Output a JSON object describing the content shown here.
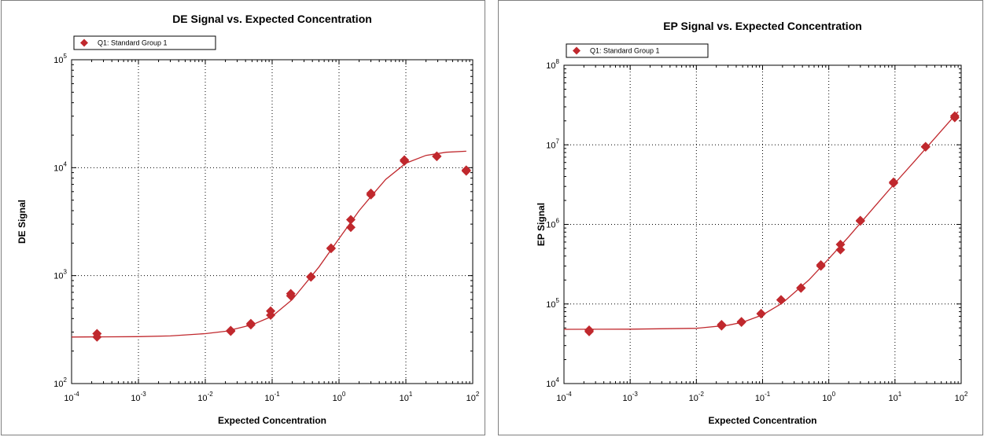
{
  "chart_data": [
    {
      "type": "scatter",
      "title": "DE Signal vs. Expected Concentration",
      "xlabel": "Expected Concentration",
      "ylabel": "DE Signal",
      "xscale": "log",
      "yscale": "log",
      "xlim": [
        0.0001,
        100
      ],
      "ylim": [
        100,
        100000
      ],
      "x_ticks": [
        "10-4",
        "10-3",
        "10-2",
        "10-1",
        "100",
        "101",
        "102"
      ],
      "y_ticks": [
        "102",
        "103",
        "104",
        "105"
      ],
      "grid": true,
      "legend_position": "top-left",
      "color": "#c0282d",
      "series": [
        {
          "name": "Q1: Standard Group 1",
          "marker": "diamond",
          "points": [
            [
              0.00024,
              290
            ],
            [
              0.00024,
              270
            ],
            [
              0.024,
              310
            ],
            [
              0.024,
              305
            ],
            [
              0.048,
              360
            ],
            [
              0.048,
              350
            ],
            [
              0.095,
              470
            ],
            [
              0.095,
              430
            ],
            [
              0.19,
              680
            ],
            [
              0.19,
              650
            ],
            [
              0.38,
              980
            ],
            [
              0.38,
              970
            ],
            [
              0.76,
              1800
            ],
            [
              0.76,
              1780
            ],
            [
              1.5,
              3300
            ],
            [
              1.5,
              2800
            ],
            [
              3.0,
              5800
            ],
            [
              3.0,
              5600
            ],
            [
              9.5,
              11500
            ],
            [
              9.5,
              11800
            ],
            [
              29,
              12800
            ],
            [
              29,
              12700
            ],
            [
              80,
              9300
            ],
            [
              80,
              9500
            ]
          ],
          "fit_curve": [
            [
              0.0001,
              270
            ],
            [
              0.001,
              272
            ],
            [
              0.003,
              276
            ],
            [
              0.01,
              290
            ],
            [
              0.02,
              305
            ],
            [
              0.05,
              350
            ],
            [
              0.1,
              420
            ],
            [
              0.2,
              600
            ],
            [
              0.5,
              1200
            ],
            [
              1.0,
              2200
            ],
            [
              2.0,
              4000
            ],
            [
              3.0,
              5400
            ],
            [
              5.0,
              7800
            ],
            [
              10,
              11000
            ],
            [
              20,
              13000
            ],
            [
              40,
              13900
            ],
            [
              80,
              14200
            ]
          ]
        }
      ]
    },
    {
      "type": "scatter",
      "title": "EP Signal vs. Expected Concentration",
      "xlabel": "Expected Concentration",
      "ylabel": "EP Signal",
      "xscale": "log",
      "yscale": "log",
      "xlim": [
        0.0001,
        100
      ],
      "ylim": [
        10000,
        100000000
      ],
      "x_ticks": [
        "10-4",
        "10-3",
        "10-2",
        "10-1",
        "100",
        "101",
        "102"
      ],
      "y_ticks": [
        "104",
        "105",
        "106",
        "107",
        "108"
      ],
      "grid": true,
      "legend_position": "top-left",
      "color": "#c0282d",
      "series": [
        {
          "name": "Q1: Standard Group 1",
          "marker": "diamond",
          "points": [
            [
              0.00024,
              47000
            ],
            [
              0.00024,
              45000
            ],
            [
              0.024,
              55000
            ],
            [
              0.024,
              53000
            ],
            [
              0.048,
              60000
            ],
            [
              0.048,
              59000
            ],
            [
              0.095,
              76000
            ],
            [
              0.095,
              75000
            ],
            [
              0.19,
              113000
            ],
            [
              0.19,
              112000
            ],
            [
              0.38,
              160000
            ],
            [
              0.38,
              158000
            ],
            [
              0.76,
              300000
            ],
            [
              0.76,
              310000
            ],
            [
              1.5,
              560000
            ],
            [
              1.5,
              480000
            ],
            [
              3.0,
              1120000
            ],
            [
              3.0,
              1100000
            ],
            [
              9.5,
              3400000
            ],
            [
              9.5,
              3300000
            ],
            [
              29,
              9500000
            ],
            [
              29,
              9400000
            ],
            [
              80,
              23000000
            ],
            [
              80,
              22000000
            ]
          ],
          "fit_curve": [
            [
              0.0001,
              48000
            ],
            [
              0.001,
              48200
            ],
            [
              0.01,
              49500
            ],
            [
              0.03,
              54000
            ],
            [
              0.05,
              59000
            ],
            [
              0.1,
              73000
            ],
            [
              0.2,
              103000
            ],
            [
              0.5,
              200000
            ],
            [
              1.0,
              370000
            ],
            [
              2.0,
              700000
            ],
            [
              5.0,
              1700000
            ],
            [
              10,
              3300000
            ],
            [
              20,
              6300000
            ],
            [
              50,
              15000000
            ],
            [
              90,
              26000000
            ]
          ]
        }
      ]
    }
  ]
}
